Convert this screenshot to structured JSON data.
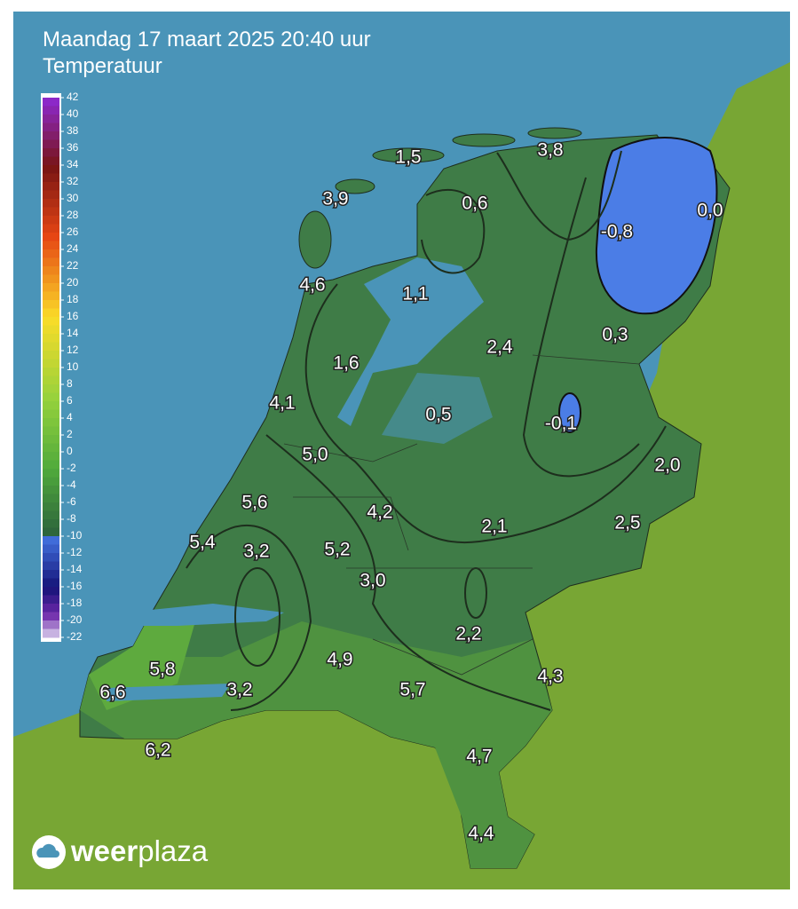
{
  "header": {
    "title": "Maandag 17 maart 2025 20:40 uur",
    "subtitle": "Temperatuur"
  },
  "legend": {
    "ticks": [
      42,
      40,
      38,
      36,
      34,
      32,
      30,
      28,
      26,
      24,
      22,
      20,
      18,
      16,
      14,
      12,
      10,
      8,
      6,
      4,
      2,
      0,
      -2,
      -4,
      -6,
      -8,
      -10,
      -12,
      -14,
      -16,
      -18,
      -20,
      -22
    ]
  },
  "stations": [
    {
      "label": "3,8"
    },
    {
      "label": "1,5"
    },
    {
      "label": "3,9"
    },
    {
      "label": "0,6"
    },
    {
      "label": "-0,8"
    },
    {
      "label": "0,0"
    },
    {
      "label": "4,6"
    },
    {
      "label": "1,1"
    },
    {
      "label": "2,4"
    },
    {
      "label": "0,3"
    },
    {
      "label": "1,6"
    },
    {
      "label": "4,1"
    },
    {
      "label": "0,5"
    },
    {
      "label": "-0,1"
    },
    {
      "label": "5,0"
    },
    {
      "label": "2,0"
    },
    {
      "label": "5,6"
    },
    {
      "label": "4,2"
    },
    {
      "label": "2,1"
    },
    {
      "label": "2,5"
    },
    {
      "label": "5,4"
    },
    {
      "label": "3,2"
    },
    {
      "label": "5,2"
    },
    {
      "label": "3,0"
    },
    {
      "label": "2,2"
    },
    {
      "label": "5,8"
    },
    {
      "label": "4,9"
    },
    {
      "label": "4,3"
    },
    {
      "label": "6,6"
    },
    {
      "label": "3,2"
    },
    {
      "label": "5,7"
    },
    {
      "label": "6,2"
    },
    {
      "label": "4,7"
    },
    {
      "label": "4,4"
    }
  ],
  "logo": {
    "bold": "weer",
    "light": "plaza"
  }
}
